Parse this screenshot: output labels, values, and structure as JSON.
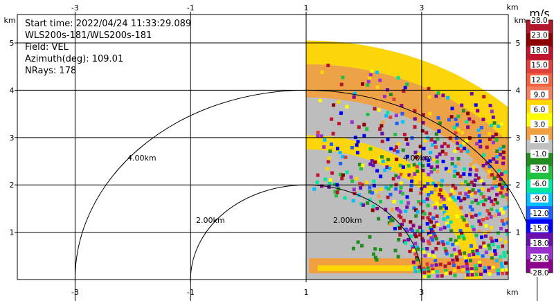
{
  "chart_data": {
    "type": "heatmap",
    "title": "",
    "info": {
      "start_time": "Start time: 2022/04/24 11:33:29.089",
      "instrument": "WLS200s-181/WLS200s-181",
      "field": "Field: VEL",
      "azimuth": "Azimuth(deg): 109.01",
      "nrays": "NRays: 178"
    },
    "x_axis": {
      "unit": "km",
      "range": [
        -4.0,
        4.5
      ],
      "ticks": [
        -3,
        -1,
        1,
        3
      ],
      "tick_labels": [
        "-3",
        "-1",
        "1",
        "3"
      ]
    },
    "y_axis": {
      "unit": "km",
      "range": [
        0,
        5.6
      ],
      "ticks": [
        1,
        2,
        3,
        4,
        5
      ],
      "tick_labels": [
        "1",
        "2",
        "3",
        "4",
        "5"
      ]
    },
    "grid": true,
    "range_rings": [
      {
        "radius_km": 2.0,
        "label": "2.00km"
      },
      {
        "radius_km": 4.0,
        "label": "4.00km"
      }
    ],
    "ring_labels_extra": [
      "2.00km",
      "4.00km"
    ],
    "scan": {
      "azimuth_start_deg": 0,
      "azimuth_end_deg": 90,
      "max_range_km": 5.05,
      "origin_x_km": 1.0,
      "origin_y_km": 0.0
    },
    "colorbar": {
      "unit": "m/s",
      "labels": [
        "28.0",
        "23.0",
        "18.0",
        "15.0",
        "12.0",
        "9.0",
        "6.0",
        "3.0",
        "1.0",
        "-1.0",
        "-3.0",
        "-6.0",
        "-9.0",
        "-12.0",
        "-15.0",
        "-18.0",
        "-23.0",
        "-28.0"
      ],
      "colors": [
        "#b2182b",
        "#8b0000",
        "#c0152f",
        "#e0403a",
        "#f06040",
        "#f48060",
        "#ffd700",
        "#ffff00",
        "#f0a040",
        "#c0c0c0",
        "#228b22",
        "#20c040",
        "#00e5a0",
        "#00bfff",
        "#1e60ff",
        "#0000ff",
        "#6a0dad",
        "#9932cc",
        "#8b008b"
      ]
    }
  }
}
